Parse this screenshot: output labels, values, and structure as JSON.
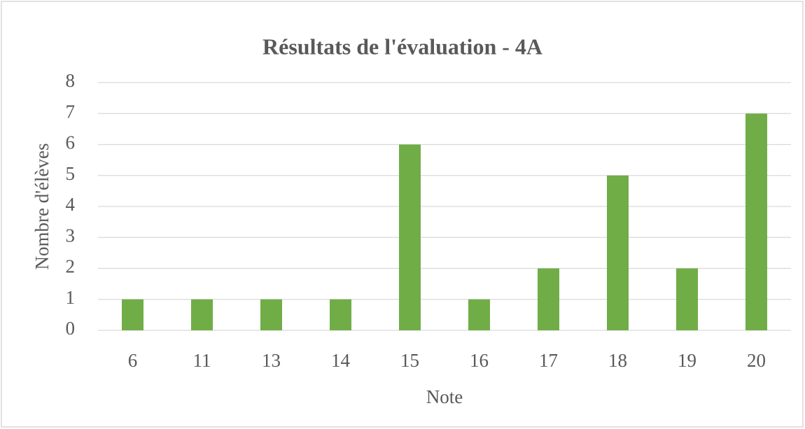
{
  "chart_data": {
    "type": "bar",
    "title": "Résultats de l'évaluation - 4A",
    "x_label": "Note",
    "y_label": "Nombre d'élèves",
    "categories": [
      "6",
      "11",
      "13",
      "14",
      "15",
      "16",
      "17",
      "18",
      "19",
      "20"
    ],
    "values": [
      1,
      1,
      1,
      1,
      6,
      1,
      2,
      5,
      2,
      7
    ],
    "color": "#70ad47",
    "ylim": [
      0,
      8
    ],
    "yticks": [
      0,
      1,
      2,
      3,
      4,
      5,
      6,
      7,
      8
    ],
    "grid": true
  }
}
